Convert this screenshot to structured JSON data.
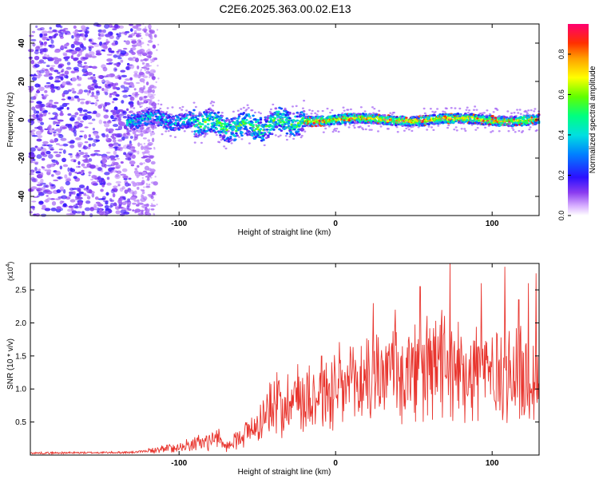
{
  "title": "C2E6.2025.363.00.02.E13",
  "chart_data": [
    {
      "type": "heatmap",
      "name": "spectrogram",
      "xlabel": "Height of straight line (km)",
      "ylabel": "Frequency (Hz)",
      "xlim": [
        -195,
        130
      ],
      "ylim": [
        -50,
        50
      ],
      "xticks": [
        -100,
        0,
        100
      ],
      "yticks": [
        -40,
        -20,
        0,
        20,
        40
      ],
      "colorbar": {
        "label": "Normalized spectral amplitude",
        "range": [
          0.0,
          0.95
        ],
        "ticks": [
          "0.0",
          "0.2",
          "0.4",
          "0.6",
          "0.8"
        ]
      }
    },
    {
      "type": "line",
      "name": "snr",
      "xlabel": "Height of straight line (km)",
      "ylabel": "SNR (10 * v/v)",
      "multiplier": "(x10^4)",
      "multiplier_base": "(x10",
      "multiplier_exp": "4",
      "multiplier_close": ")",
      "xlim": [
        -195,
        130
      ],
      "ylim": [
        0,
        2.9
      ],
      "xticks": [
        -100,
        0,
        100
      ],
      "yticks": [
        "0.5",
        "1.0",
        "1.5",
        "2.0",
        "2.5"
      ],
      "envelope": {
        "x": [
          -195,
          -130,
          -120,
          -100,
          -85,
          -75,
          -70,
          -60,
          -50,
          -45,
          -40,
          -30,
          -20,
          -10,
          0,
          10,
          20,
          30,
          40,
          50,
          60,
          70,
          80,
          90,
          100,
          110,
          120,
          130
        ],
        "y": [
          0.03,
          0.04,
          0.06,
          0.12,
          0.2,
          0.25,
          0.12,
          0.3,
          0.45,
          0.6,
          0.75,
          0.85,
          0.9,
          0.95,
          0.95,
          1.05,
          1.15,
          1.25,
          1.25,
          1.2,
          1.3,
          1.35,
          1.3,
          1.35,
          1.25,
          1.25,
          1.15,
          1.15
        ]
      },
      "noise_amplitude": 0.55,
      "peaks": [
        {
          "x": 73,
          "y": 2.9
        },
        {
          "x": 108,
          "y": 2.85
        },
        {
          "x": 128,
          "y": 2.75
        },
        {
          "x": 54,
          "y": 2.55
        },
        {
          "x": 93,
          "y": 2.6
        },
        {
          "x": 123,
          "y": 2.6
        },
        {
          "x": 24,
          "y": 2.3
        },
        {
          "x": 38,
          "y": 2.2
        },
        {
          "x": 117,
          "y": 2.35
        },
        {
          "x": -9,
          "y": 1.5
        }
      ]
    }
  ],
  "colors": {
    "line": "#e8352e",
    "axis": "#000000"
  }
}
